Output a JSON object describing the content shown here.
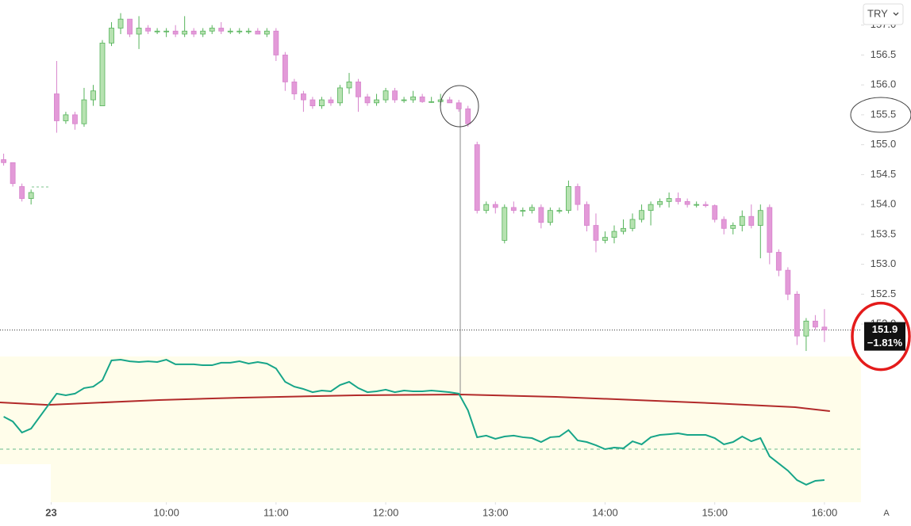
{
  "chart_data": {
    "type": "candlestick",
    "xlim": [
      509,
      980
    ],
    "ylim": [
      149.02,
      157.42
    ],
    "yticks": [
      {
        "value": 157,
        "label": "157.0"
      },
      156.5,
      {
        "value": 156,
        "label": "156.0"
      },
      155.5,
      {
        "value": 155,
        "label": "155.0"
      },
      154.5,
      {
        "value": 154,
        "label": "154.0"
      },
      153.5,
      {
        "value": 153,
        "label": "153.0"
      },
      152.5,
      {
        "value": 152,
        "label": "152.0"
      }
    ],
    "xticks": [
      {
        "value": 537,
        "label": "23"
      },
      {
        "value": 600,
        "label": "10:00"
      },
      {
        "value": 660,
        "label": "11:00"
      },
      {
        "value": 720,
        "label": "12:00"
      },
      {
        "value": 780,
        "label": "13:00"
      },
      {
        "value": 840,
        "label": "14:00"
      },
      {
        "value": 900,
        "label": "15:00"
      },
      {
        "value": 960,
        "label": "16:00"
      }
    ],
    "up_color": "#b7e2b1",
    "down_color": "#e39ad8",
    "currency": "TRY",
    "last_price": 151.9,
    "change_label": "−1.81%",
    "scale_mode": "A",
    "x": [
      511,
      516,
      521,
      526,
      540,
      545,
      550,
      555,
      560,
      565,
      570,
      575,
      580,
      585,
      590,
      595,
      600,
      605,
      610,
      615,
      620,
      625,
      630,
      635,
      640,
      645,
      650,
      655,
      660,
      665,
      670,
      675,
      680,
      685,
      690,
      695,
      700,
      705,
      710,
      715,
      720,
      725,
      730,
      735,
      740,
      745,
      750,
      755,
      760,
      765,
      770,
      775,
      780,
      785,
      790,
      795,
      800,
      805,
      810,
      815,
      820,
      825,
      830,
      835,
      840,
      845,
      850,
      855,
      860,
      865,
      870,
      875,
      880,
      885,
      890,
      895,
      900,
      905,
      910,
      915,
      920,
      925,
      930,
      935,
      940,
      945,
      950,
      955,
      960
    ],
    "ohlc": [
      [
        154.75,
        154.85,
        154.65,
        154.7
      ],
      [
        154.7,
        154.7,
        154.3,
        154.35
      ],
      [
        154.3,
        154.35,
        154.05,
        154.1
      ],
      [
        154.1,
        154.25,
        154.0,
        154.2
      ],
      [
        155.85,
        156.4,
        155.2,
        155.4
      ],
      [
        155.4,
        155.55,
        155.35,
        155.5
      ],
      [
        155.5,
        155.55,
        155.25,
        155.35
      ],
      [
        155.35,
        155.95,
        155.3,
        155.75
      ],
      [
        155.75,
        156.0,
        155.65,
        155.9
      ],
      [
        155.65,
        156.75,
        155.65,
        156.7
      ],
      [
        156.7,
        157.05,
        156.65,
        156.95
      ],
      [
        156.95,
        157.2,
        156.85,
        157.1
      ],
      [
        157.1,
        157.1,
        156.8,
        156.85
      ],
      [
        156.85,
        157.15,
        156.6,
        156.95
      ],
      [
        156.95,
        157.0,
        156.85,
        156.9
      ],
      [
        156.9,
        156.95,
        156.85,
        156.9
      ],
      [
        156.9,
        156.95,
        156.8,
        156.9
      ],
      [
        156.9,
        157.0,
        156.8,
        156.85
      ],
      [
        156.85,
        157.15,
        156.8,
        156.9
      ],
      [
        156.9,
        156.95,
        156.8,
        156.85
      ],
      [
        156.85,
        156.95,
        156.8,
        156.9
      ],
      [
        156.9,
        157.0,
        156.85,
        156.95
      ],
      [
        156.95,
        157.05,
        156.85,
        156.9
      ],
      [
        156.9,
        156.95,
        156.85,
        156.9
      ],
      [
        156.9,
        156.95,
        156.85,
        156.9
      ],
      [
        156.9,
        156.95,
        156.85,
        156.9
      ],
      [
        156.9,
        156.95,
        156.85,
        156.85
      ],
      [
        156.85,
        156.95,
        156.8,
        156.9
      ],
      [
        156.9,
        156.95,
        156.4,
        156.5
      ],
      [
        156.5,
        156.55,
        155.9,
        156.05
      ],
      [
        156.05,
        156.1,
        155.75,
        155.85
      ],
      [
        155.85,
        155.9,
        155.55,
        155.75
      ],
      [
        155.75,
        155.8,
        155.6,
        155.65
      ],
      [
        155.65,
        155.8,
        155.6,
        155.75
      ],
      [
        155.75,
        155.8,
        155.65,
        155.7
      ],
      [
        155.7,
        156.0,
        155.65,
        155.95
      ],
      [
        155.95,
        156.2,
        155.85,
        156.05
      ],
      [
        156.05,
        156.1,
        155.55,
        155.8
      ],
      [
        155.8,
        155.85,
        155.65,
        155.7
      ],
      [
        155.7,
        155.85,
        155.65,
        155.75
      ],
      [
        155.75,
        155.95,
        155.7,
        155.9
      ],
      [
        155.9,
        155.95,
        155.7,
        155.75
      ],
      [
        155.75,
        155.8,
        155.7,
        155.75
      ],
      [
        155.75,
        155.9,
        155.7,
        155.8
      ],
      [
        155.8,
        155.85,
        155.7,
        155.72
      ],
      [
        155.72,
        155.8,
        155.7,
        155.72
      ],
      [
        155.72,
        155.85,
        155.65,
        155.75
      ],
      [
        155.75,
        155.8,
        155.7,
        155.7
      ],
      [
        155.7,
        155.75,
        155.55,
        155.6
      ],
      [
        155.6,
        155.65,
        155.3,
        155.35
      ],
      [
        155.0,
        155.05,
        153.85,
        153.9
      ],
      [
        153.9,
        154.05,
        153.85,
        154.0
      ],
      [
        154.0,
        154.05,
        153.85,
        153.95
      ],
      [
        153.4,
        154.0,
        153.35,
        153.95
      ],
      [
        153.95,
        154.05,
        153.85,
        153.9
      ],
      [
        153.9,
        153.95,
        153.8,
        153.9
      ],
      [
        153.9,
        154.0,
        153.85,
        153.95
      ],
      [
        153.95,
        154.0,
        153.6,
        153.7
      ],
      [
        153.7,
        153.95,
        153.65,
        153.9
      ],
      [
        153.9,
        153.95,
        153.85,
        153.9
      ],
      [
        153.9,
        154.4,
        153.85,
        154.3
      ],
      [
        154.3,
        154.35,
        153.9,
        154.0
      ],
      [
        154.0,
        154.05,
        153.55,
        153.65
      ],
      [
        153.65,
        153.85,
        153.2,
        153.4
      ],
      [
        153.4,
        153.55,
        153.35,
        153.45
      ],
      [
        153.45,
        153.65,
        153.35,
        153.55
      ],
      [
        153.55,
        153.75,
        153.5,
        153.6
      ],
      [
        153.6,
        153.85,
        153.55,
        153.75
      ],
      [
        153.75,
        154.0,
        153.7,
        153.9
      ],
      [
        153.9,
        154.05,
        153.65,
        154.0
      ],
      [
        154.0,
        154.1,
        153.95,
        154.05
      ],
      [
        154.05,
        154.2,
        153.95,
        154.1
      ],
      [
        154.1,
        154.2,
        154.0,
        154.05
      ],
      [
        154.05,
        154.1,
        153.95,
        154.0
      ],
      [
        154.0,
        154.05,
        153.95,
        154.0
      ],
      [
        154.0,
        154.05,
        153.95,
        153.98
      ],
      [
        153.98,
        154.0,
        153.7,
        153.75
      ],
      [
        153.75,
        153.8,
        153.5,
        153.6
      ],
      [
        153.6,
        153.7,
        153.5,
        153.65
      ],
      [
        153.65,
        153.9,
        153.55,
        153.8
      ],
      [
        153.8,
        154.0,
        153.6,
        153.65
      ],
      [
        153.65,
        154.0,
        153.1,
        153.9
      ],
      [
        153.95,
        154.0,
        153.0,
        153.2
      ],
      [
        153.2,
        153.25,
        152.8,
        152.9
      ],
      [
        152.9,
        152.95,
        152.4,
        152.5
      ],
      [
        152.5,
        152.55,
        151.65,
        151.8
      ],
      [
        151.8,
        152.1,
        151.55,
        152.05
      ],
      [
        152.05,
        152.15,
        151.9,
        151.95
      ],
      [
        151.95,
        152.25,
        151.7,
        151.9
      ]
    ],
    "indicator": {
      "ylim": [
        0,
        100
      ],
      "level": 36.4,
      "level_color": "#66bb8a",
      "main": {
        "color": "#17a589",
        "values": [
          58.7,
          55.4,
          47.8,
          50.5,
          74.5,
          73.4,
          74.5,
          78.3,
          79.3,
          83.7,
          97.3,
          97.8,
          96.7,
          96.2,
          96.7,
          96.2,
          97.8,
          94.6,
          94.6,
          94.6,
          94.0,
          94.0,
          95.7,
          95.7,
          96.7,
          95.1,
          96.2,
          95.1,
          91.8,
          82.6,
          79.3,
          77.7,
          75.5,
          76.6,
          76.1,
          80.4,
          82.6,
          78.3,
          75.5,
          76.1,
          77.2,
          75.5,
          76.6,
          76.1,
          76.1,
          76.6,
          76.1,
          75.5,
          74.5,
          63.0,
          44.6,
          45.7,
          43.5,
          45.1,
          45.7,
          44.6,
          44.0,
          41.3,
          44.6,
          45.1,
          49.5,
          42.4,
          41.3,
          39.1,
          36.4,
          37.5,
          37.0,
          41.8,
          39.7,
          44.6,
          46.2,
          46.7,
          47.3,
          46.2,
          46.2,
          46.2,
          44.0,
          39.7,
          41.3,
          45.1,
          41.8,
          44.0,
          31.5,
          26.6,
          21.7,
          15.2,
          12.0,
          14.7,
          15.2
        ]
      },
      "average": {
        "color": "#b22a2a",
        "x": [
          509,
          535,
          596,
          639,
          704,
          761,
          813,
          857,
          900,
          944,
          963
        ],
        "values": [
          68.5,
          66.8,
          70.1,
          71.7,
          73.4,
          73.9,
          72.3,
          70.1,
          67.9,
          65.2,
          62.5
        ]
      }
    }
  }
}
